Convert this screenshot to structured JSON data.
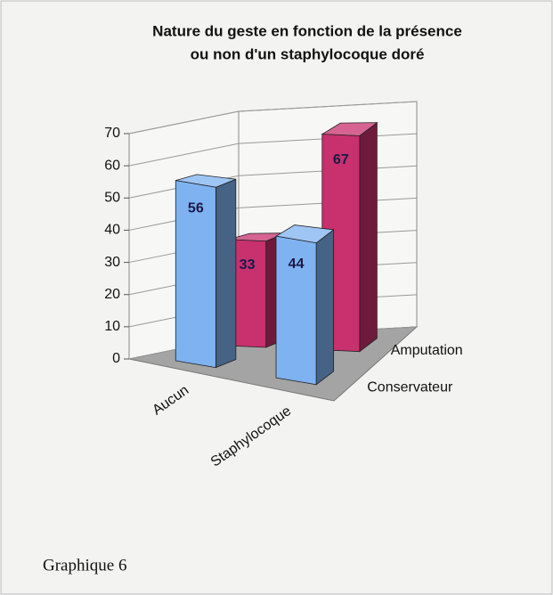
{
  "chart_data": {
    "type": "bar3d",
    "title": [
      "Nature du geste en fonction de la présence",
      "ou non d'un staphylocoque doré"
    ],
    "categories": [
      "Aucun",
      "Staphylocoque"
    ],
    "series": [
      {
        "name": "Conservateur",
        "color": "#7fb2f0",
        "values": [
          56,
          44
        ]
      },
      {
        "name": "Amputation",
        "color": "#c8306e",
        "values": [
          33,
          67
        ]
      }
    ],
    "ylim": [
      0,
      70
    ],
    "yticks": [
      0,
      10,
      20,
      30,
      40,
      50,
      60,
      70
    ],
    "grid": true
  },
  "caption": "Graphique 6"
}
